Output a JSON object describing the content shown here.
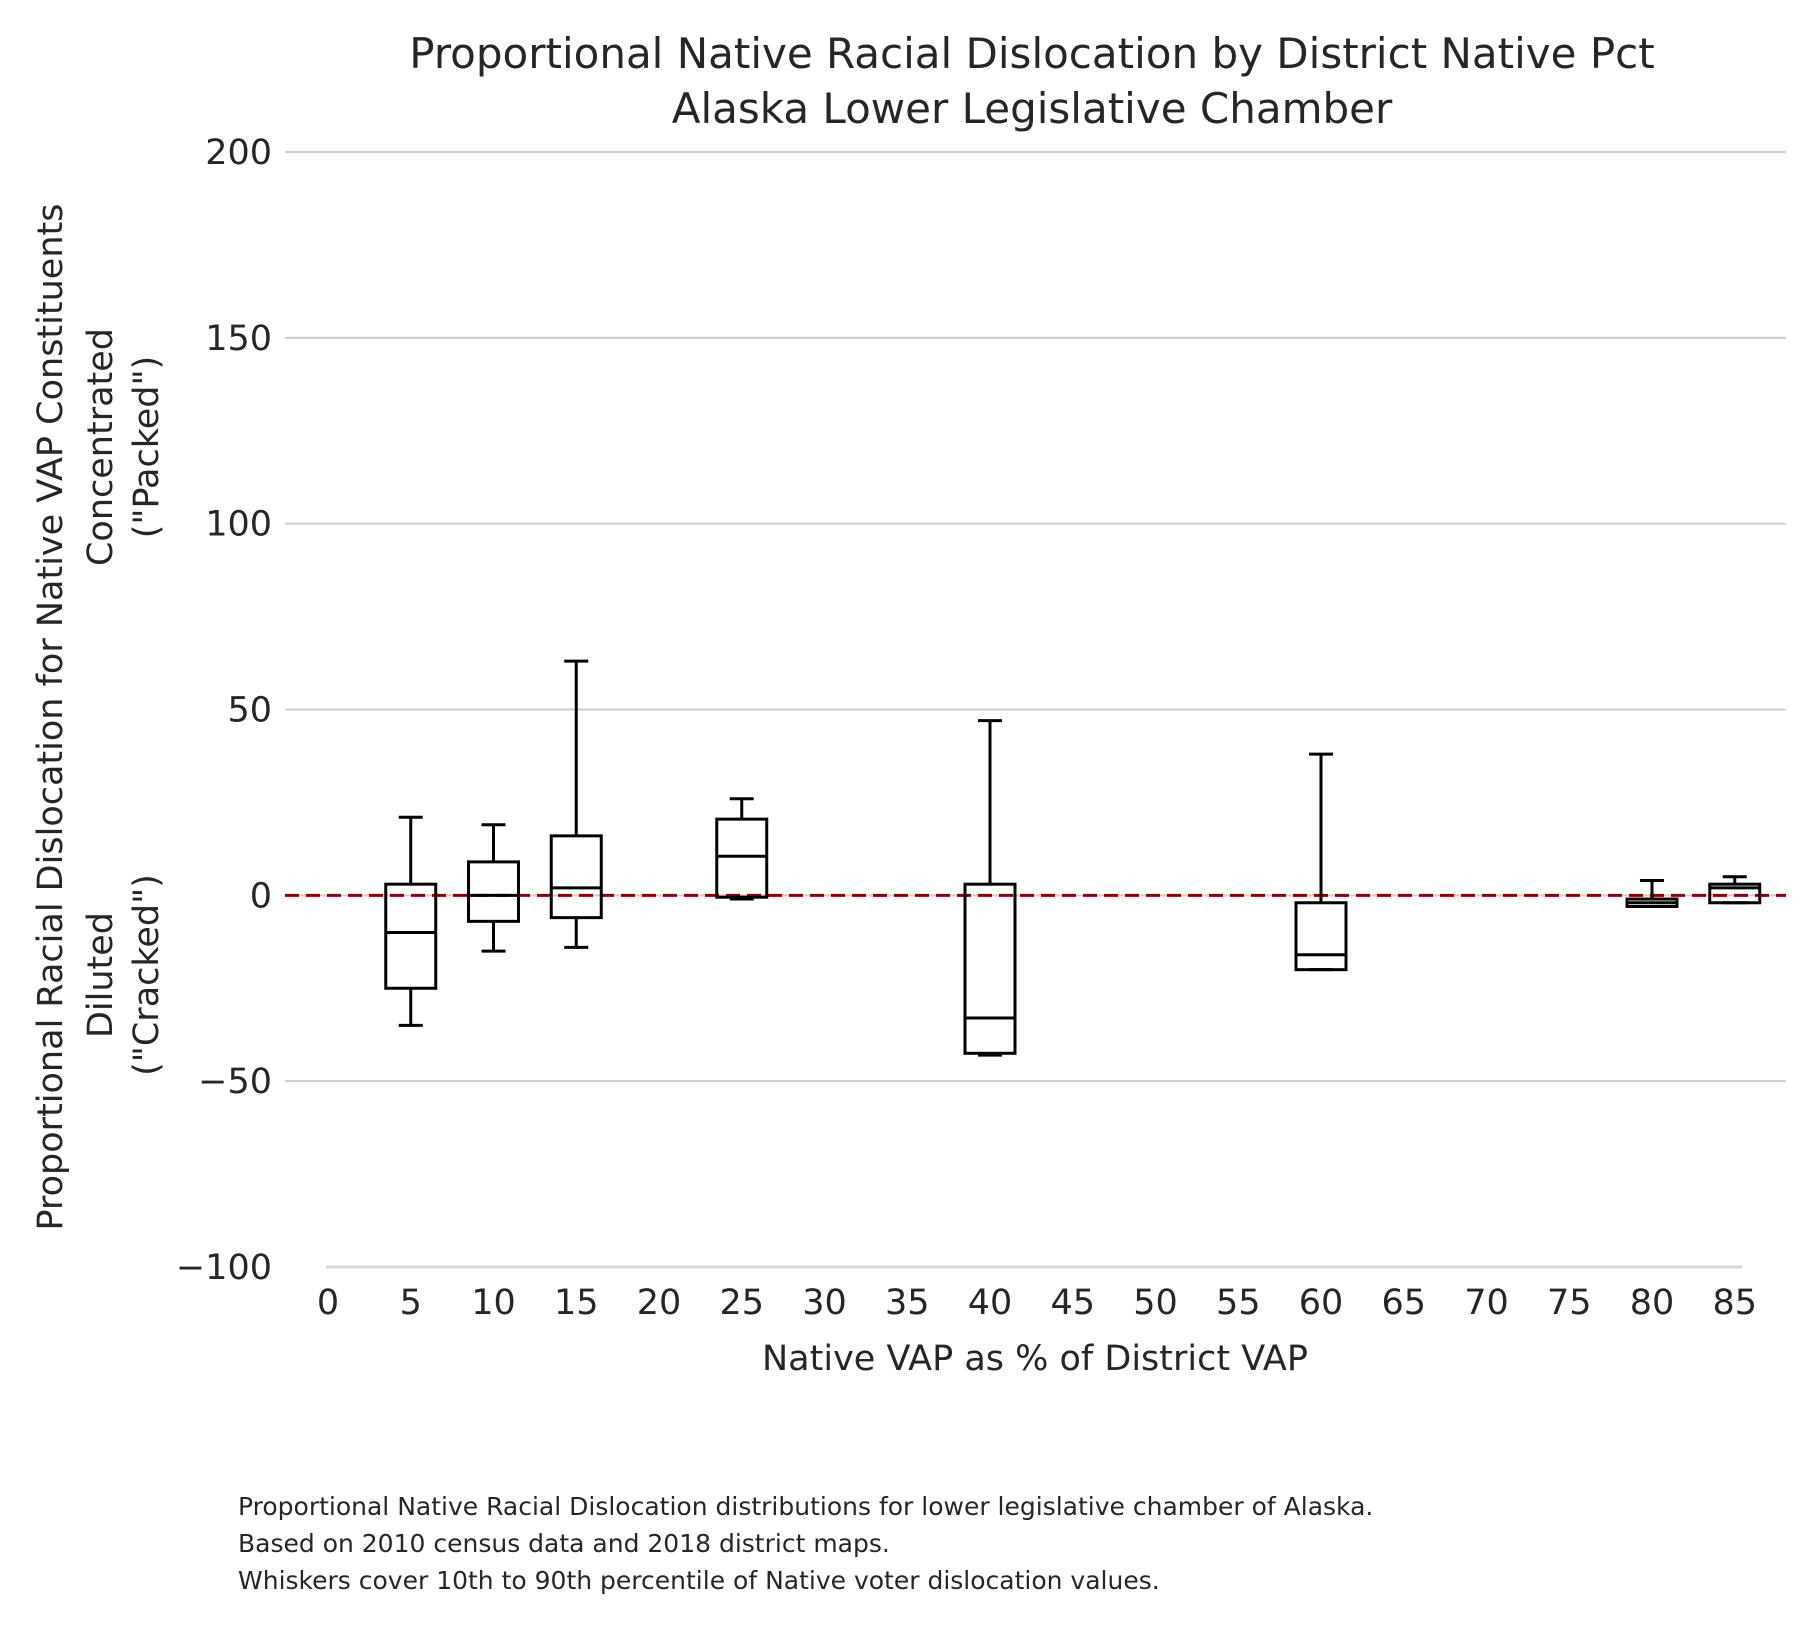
{
  "chart_data": {
    "type": "box",
    "title": "Proportional Native Racial Dislocation by District Native Pct",
    "subtitle": "Alaska Lower Legislative Chamber",
    "xlabel": "Native VAP as % of District VAP",
    "ylabel": {
      "main": "Proportional Racial Dislocation for Native VAP Constituents",
      "top_line1": "Concentrated",
      "top_line2": "(\"Packed\")",
      "bottom_line1": "Diluted",
      "bottom_line2": "(\"Cracked\")"
    },
    "ylim": [
      -100,
      200
    ],
    "yticks": [
      -100,
      -50,
      0,
      50,
      100,
      150,
      200
    ],
    "xticks": [
      0,
      5,
      10,
      15,
      20,
      25,
      30,
      35,
      40,
      45,
      50,
      55,
      60,
      65,
      70,
      75,
      80,
      85
    ],
    "grid": "horizontal",
    "reference_line": {
      "y": 0,
      "color": "#8b0000",
      "style": "dashed"
    },
    "boxes": [
      {
        "x": 5,
        "whisker_low": -35,
        "q1": -25,
        "median": -10,
        "q3": 3,
        "whisker_high": 21
      },
      {
        "x": 10,
        "whisker_low": -15,
        "q1": -7,
        "median": 0,
        "q3": 9,
        "whisker_high": 19
      },
      {
        "x": 15,
        "whisker_low": -14,
        "q1": -6,
        "median": 2,
        "q3": 16,
        "whisker_high": 63
      },
      {
        "x": 25,
        "whisker_low": -1,
        "q1": -0.5,
        "median": 10.5,
        "q3": 20.5,
        "whisker_high": 26
      },
      {
        "x": 40,
        "whisker_low": -43,
        "q1": -42.5,
        "median": -33,
        "q3": 3,
        "whisker_high": 47
      },
      {
        "x": 60,
        "whisker_low": -20,
        "q1": -20,
        "median": -16,
        "q3": -2,
        "whisker_high": 38
      },
      {
        "x": 80,
        "whisker_low": -3,
        "q1": -3,
        "median": -2,
        "q3": -1,
        "whisker_high": 4
      },
      {
        "x": 85,
        "whisker_low": -2,
        "q1": -2,
        "median": 2,
        "q3": 3,
        "whisker_high": 5
      }
    ]
  },
  "caption": {
    "line1": "Proportional Native Racial Dislocation distributions for lower legislative chamber of Alaska.",
    "line2": "Based on 2010 census data and 2018 district maps.",
    "line3": "Whiskers cover 10th to 90th percentile of Native voter dislocation values."
  },
  "colors": {
    "grid": "#cccccc",
    "box": "#000000",
    "reference": "#8b0000",
    "text": "#262626"
  }
}
